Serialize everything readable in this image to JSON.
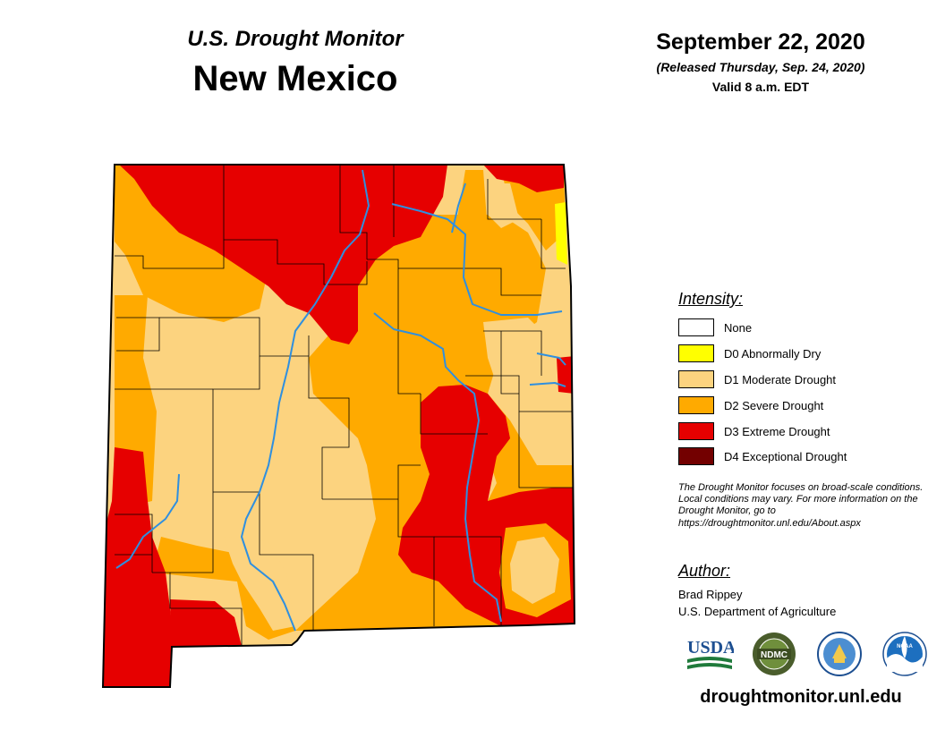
{
  "header": {
    "subtitle": "U.S. Drought Monitor",
    "state": "New Mexico",
    "date": "September 22, 2020",
    "released": "(Released Thursday, Sep. 24, 2020)",
    "valid": "Valid 8 a.m. EDT"
  },
  "legend": {
    "title": "Intensity:",
    "items": [
      {
        "label": "None",
        "color": "#ffffff"
      },
      {
        "label": "D0 Abnormally Dry",
        "color": "#ffff00"
      },
      {
        "label": "D1 Moderate Drought",
        "color": "#fcd37f"
      },
      {
        "label": "D2 Severe Drought",
        "color": "#ffaa00"
      },
      {
        "label": "D3 Extreme Drought",
        "color": "#e60000"
      },
      {
        "label": "D4 Exceptional Drought",
        "color": "#730000"
      }
    ]
  },
  "note": "The Drought Monitor focuses on broad-scale conditions. Local conditions may vary. For more information on the Drought Monitor, go to https://droughtmonitor.unl.edu/About.aspx",
  "author": {
    "title": "Author:",
    "name": "Brad Rippey",
    "org": "U.S. Department of Agriculture"
  },
  "logos": {
    "usda": "USDA",
    "ndmc": "NDMC",
    "doc": "doc-seal-icon",
    "noaa": "NOAA"
  },
  "footer_url": "droughtmonitor.unl.edu"
}
